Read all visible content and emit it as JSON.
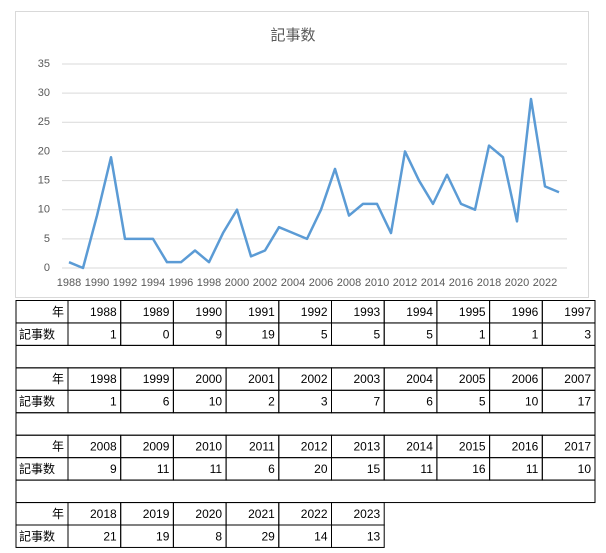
{
  "chart_data": {
    "type": "line",
    "title": "記事数",
    "categories": [
      "1988",
      null,
      "1990",
      null,
      "1992",
      null,
      "1994",
      null,
      "1996",
      null,
      "1998",
      null,
      "2000",
      null,
      "2002",
      null,
      "2004",
      null,
      "2006",
      null,
      "2008",
      null,
      "2010",
      null,
      "2012",
      null,
      "2014",
      null,
      "2016",
      null,
      "2018",
      null,
      "2020",
      null,
      "2022",
      null
    ],
    "series": [
      {
        "name": "記事数",
        "color": "#5b9bd5",
        "values": [
          1,
          0,
          9,
          19,
          5,
          5,
          5,
          1,
          1,
          3,
          1,
          6,
          10,
          2,
          3,
          7,
          6,
          5,
          10,
          17,
          9,
          11,
          11,
          6,
          20,
          15,
          11,
          16,
          11,
          10,
          21,
          19,
          8,
          29,
          14,
          13
        ]
      }
    ],
    "ylim": [
      0,
      35
    ],
    "yticks": [
      0,
      5,
      10,
      15,
      20,
      25,
      30,
      35
    ],
    "grid": true
  },
  "table": {
    "year_label": "年",
    "count_label": "記事数",
    "blocks": [
      {
        "years": [
          "1988",
          "1989",
          "1990",
          "1991",
          "1992",
          "1993",
          "1994",
          "1995",
          "1996",
          "1997"
        ],
        "counts": [
          "1",
          "0",
          "9",
          "19",
          "5",
          "5",
          "5",
          "1",
          "1",
          "3"
        ]
      },
      {
        "years": [
          "1998",
          "1999",
          "2000",
          "2001",
          "2002",
          "2003",
          "2004",
          "2005",
          "2006",
          "2007"
        ],
        "counts": [
          "1",
          "6",
          "10",
          "2",
          "3",
          "7",
          "6",
          "5",
          "10",
          "17"
        ]
      },
      {
        "years": [
          "2008",
          "2009",
          "2010",
          "2011",
          "2012",
          "2013",
          "2014",
          "2015",
          "2016",
          "2017"
        ],
        "counts": [
          "9",
          "11",
          "11",
          "6",
          "20",
          "15",
          "11",
          "16",
          "11",
          "10"
        ]
      },
      {
        "years": [
          "2018",
          "2019",
          "2020",
          "2021",
          "2022",
          "2023"
        ],
        "counts": [
          "21",
          "19",
          "8",
          "29",
          "14",
          "13"
        ]
      }
    ]
  }
}
